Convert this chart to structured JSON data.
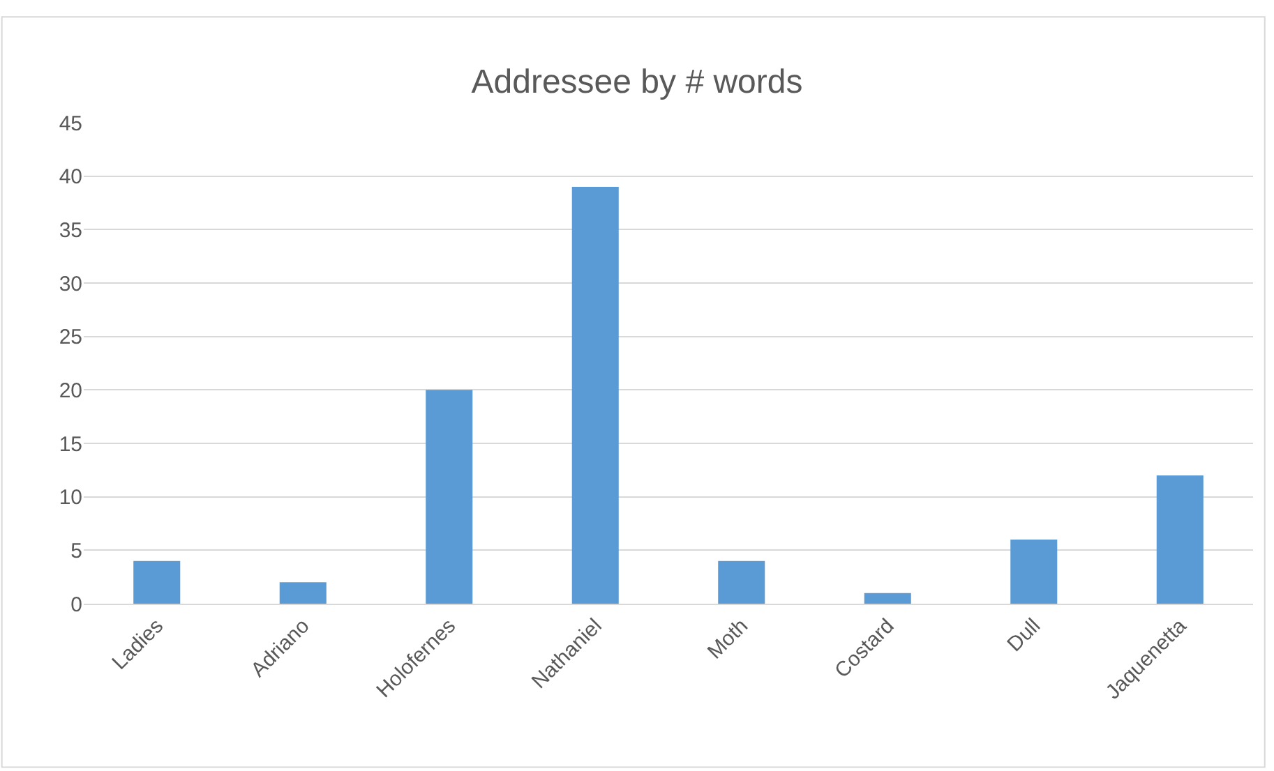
{
  "chart_data": {
    "type": "bar",
    "title": "Addressee by # words",
    "categories": [
      "Ladies",
      "Adriano",
      "Holofernes",
      "Nathaniel",
      "Moth",
      "Costard",
      "Dull",
      "Jaquenetta"
    ],
    "values": [
      4,
      2,
      20,
      39,
      4,
      1,
      6,
      12
    ],
    "color": "#5b9bd5",
    "ylim": [
      0,
      45
    ],
    "yticks": [
      0,
      5,
      10,
      15,
      20,
      25,
      30,
      35,
      40,
      45
    ],
    "grid": "y",
    "legend": false
  }
}
